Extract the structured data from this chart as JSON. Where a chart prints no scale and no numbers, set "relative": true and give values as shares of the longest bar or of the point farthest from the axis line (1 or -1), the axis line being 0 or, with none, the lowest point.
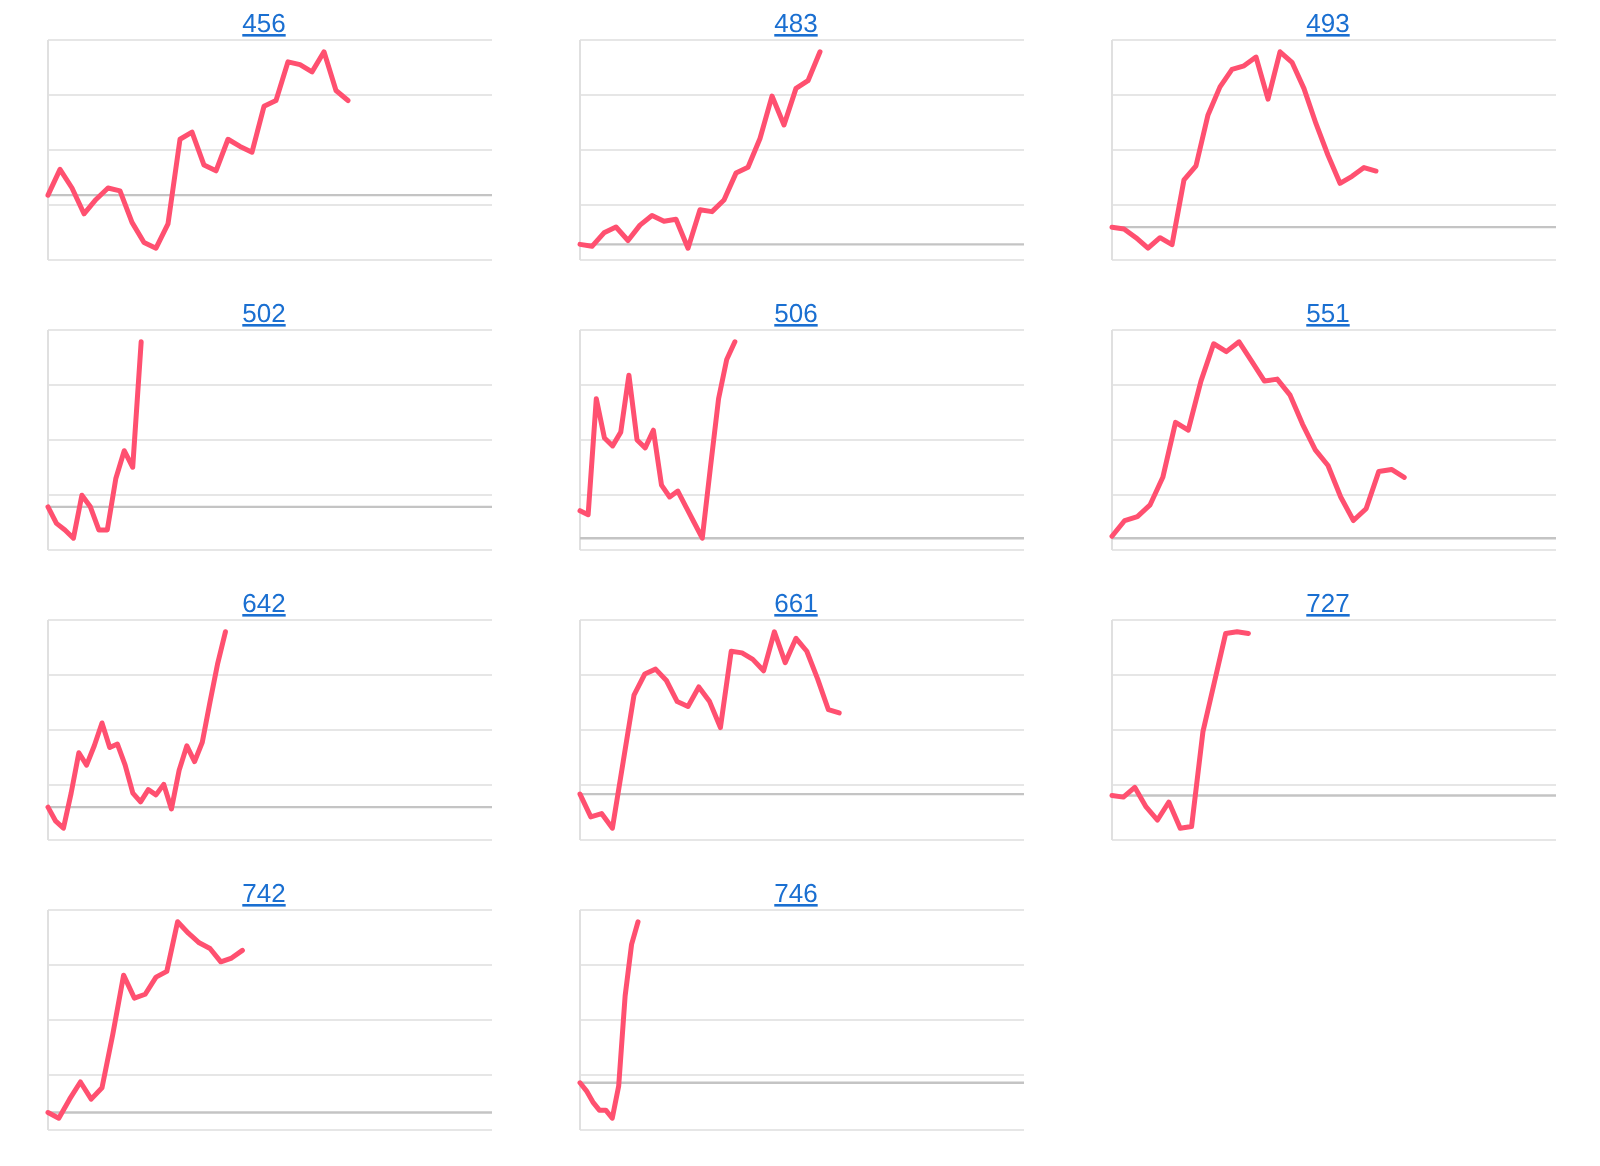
{
  "chart_data": [
    {
      "type": "line",
      "title": "456",
      "relative": true,
      "grid": true,
      "color": "#ff5070",
      "categories": [
        null,
        null,
        null,
        null,
        null,
        null,
        null,
        null,
        null,
        null,
        null,
        null,
        null,
        null,
        null,
        null,
        null,
        null,
        null,
        null,
        null,
        null,
        null,
        null,
        null,
        null,
        null,
        null,
        null,
        null,
        null,
        null,
        null,
        null,
        null,
        null,
        null
      ],
      "values": [
        0,
        0.18,
        0.05,
        -0.13,
        -0.03,
        0.05,
        0.03,
        -0.19,
        -0.33,
        -0.37,
        -0.2,
        0.39,
        0.44,
        0.21,
        0.17,
        0.39,
        0.34,
        0.3,
        0.62,
        0.66,
        0.93,
        0.91,
        0.86,
        1,
        0.73,
        0.66,
        null,
        null,
        null,
        null,
        null,
        null,
        null,
        null,
        null,
        null,
        null
      ]
    },
    {
      "type": "line",
      "title": "483",
      "relative": true,
      "grid": true,
      "color": "#ff5070",
      "categories": [
        null,
        null,
        null,
        null,
        null,
        null,
        null,
        null,
        null,
        null,
        null,
        null,
        null,
        null,
        null,
        null,
        null,
        null,
        null,
        null,
        null,
        null,
        null,
        null,
        null,
        null,
        null,
        null,
        null,
        null,
        null,
        null,
        null,
        null,
        null,
        null,
        null
      ],
      "values": [
        0,
        -0.01,
        0.06,
        0.09,
        0.02,
        0.1,
        0.15,
        0.12,
        0.13,
        -0.02,
        0.18,
        0.17,
        0.23,
        0.37,
        0.4,
        0.55,
        0.77,
        0.62,
        0.81,
        0.85,
        1,
        null,
        null,
        null,
        null,
        null,
        null,
        null,
        null,
        null,
        null,
        null,
        null,
        null,
        null,
        null,
        null
      ]
    },
    {
      "type": "line",
      "title": "493",
      "relative": true,
      "grid": true,
      "color": "#ff5070",
      "categories": [
        null,
        null,
        null,
        null,
        null,
        null,
        null,
        null,
        null,
        null,
        null,
        null,
        null,
        null,
        null,
        null,
        null,
        null,
        null,
        null,
        null,
        null,
        null,
        null,
        null,
        null,
        null,
        null,
        null,
        null,
        null,
        null,
        null,
        null,
        null,
        null,
        null
      ],
      "values": [
        0,
        -0.01,
        -0.06,
        -0.12,
        -0.06,
        -0.1,
        0.27,
        0.35,
        0.64,
        0.8,
        0.9,
        0.92,
        0.97,
        0.73,
        1,
        0.94,
        0.79,
        0.59,
        0.41,
        0.25,
        0.29,
        0.34,
        0.32,
        null,
        null,
        null,
        null,
        null,
        null,
        null,
        null,
        null,
        null,
        null,
        null,
        null,
        null
      ]
    },
    {
      "type": "line",
      "title": "502",
      "relative": true,
      "grid": true,
      "color": "#ff5070",
      "categories": [
        null,
        null,
        null,
        null,
        null,
        null,
        null,
        null,
        null,
        null,
        null,
        null,
        null,
        null,
        null,
        null,
        null,
        null,
        null,
        null,
        null,
        null,
        null,
        null,
        null,
        null,
        null,
        null,
        null,
        null,
        null,
        null,
        null,
        null,
        null,
        null,
        null,
        null,
        null,
        null,
        null,
        null,
        null,
        null,
        null,
        null,
        null,
        null,
        null,
        null,
        null,
        null
      ],
      "values": [
        0,
        -0.1,
        -0.14,
        -0.19,
        0.07,
        0,
        -0.14,
        -0.14,
        0.17,
        0.34,
        0.24,
        1,
        null,
        null,
        null,
        null,
        null,
        null,
        null,
        null,
        null,
        null,
        null,
        null,
        null,
        null,
        null,
        null,
        null,
        null,
        null,
        null,
        null,
        null,
        null,
        null,
        null,
        null,
        null,
        null,
        null,
        null,
        null,
        null,
        null,
        null,
        null,
        null,
        null,
        null,
        null,
        null
      ]
    },
    {
      "type": "line",
      "title": "506",
      "relative": true,
      "grid": true,
      "color": "#ff5070",
      "categories": [
        null,
        null,
        null,
        null,
        null,
        null,
        null,
        null,
        null,
        null,
        null,
        null,
        null,
        null,
        null,
        null,
        null,
        null,
        null,
        null,
        null,
        null,
        null,
        null,
        null,
        null,
        null,
        null,
        null,
        null,
        null,
        null,
        null,
        null,
        null,
        null,
        null,
        null,
        null,
        null,
        null,
        null,
        null,
        null,
        null,
        null,
        null,
        null,
        null,
        null,
        null,
        null,
        null,
        null
      ],
      "values": [
        0.14,
        0.12,
        0.71,
        0.51,
        0.47,
        0.54,
        0.83,
        0.5,
        0.46,
        0.55,
        0.27,
        0.21,
        0.24,
        0.16,
        0.08,
        0,
        0.36,
        0.71,
        0.91,
        1,
        null,
        null,
        null,
        null,
        null,
        null,
        null,
        null,
        null,
        null,
        null,
        null,
        null,
        null,
        null,
        null,
        null,
        null,
        null,
        null,
        null,
        null,
        null,
        null,
        null,
        null,
        null,
        null,
        null,
        null,
        null,
        null,
        null,
        null
      ]
    },
    {
      "type": "line",
      "title": "551",
      "relative": true,
      "grid": true,
      "color": "#ff5070",
      "categories": [
        null,
        null,
        null,
        null,
        null,
        null,
        null,
        null,
        null,
        null,
        null,
        null,
        null,
        null,
        null,
        null,
        null,
        null,
        null,
        null,
        null,
        null,
        null,
        null,
        null,
        null,
        null,
        null,
        null,
        null,
        null,
        null,
        null,
        null,
        null
      ],
      "values": [
        0.01,
        0.09,
        0.11,
        0.17,
        0.31,
        0.59,
        0.55,
        0.8,
        0.99,
        0.95,
        1,
        0.9,
        0.8,
        0.81,
        0.73,
        0.58,
        0.45,
        0.37,
        0.21,
        0.09,
        0.15,
        0.34,
        0.35,
        0.31,
        null,
        null,
        null,
        null,
        null,
        null,
        null,
        null,
        null,
        null,
        null
      ]
    },
    {
      "type": "line",
      "title": "642",
      "relative": true,
      "grid": true,
      "color": "#ff5070",
      "categories": [
        null,
        null,
        null,
        null,
        null,
        null,
        null,
        null,
        null,
        null,
        null,
        null,
        null,
        null,
        null,
        null,
        null,
        null,
        null,
        null,
        null,
        null,
        null,
        null,
        null,
        null,
        null,
        null,
        null,
        null,
        null,
        null,
        null,
        null,
        null,
        null,
        null,
        null,
        null,
        null,
        null,
        null,
        null,
        null,
        null,
        null,
        null,
        null,
        null,
        null,
        null,
        null,
        null,
        null,
        null,
        null,
        null
      ],
      "values": [
        0,
        -0.08,
        -0.12,
        0.08,
        0.31,
        0.24,
        0.35,
        0.48,
        0.34,
        0.36,
        0.24,
        0.08,
        0.03,
        0.1,
        0.07,
        0.13,
        -0.01,
        0.21,
        0.35,
        0.26,
        0.37,
        0.6,
        0.82,
        1,
        null,
        null,
        null,
        null,
        null,
        null,
        null,
        null,
        null,
        null,
        null,
        null,
        null,
        null,
        null,
        null,
        null,
        null,
        null,
        null,
        null,
        null,
        null,
        null,
        null,
        null,
        null,
        null,
        null,
        null,
        null,
        null,
        null
      ]
    },
    {
      "type": "line",
      "title": "661",
      "relative": true,
      "grid": true,
      "color": "#ff5070",
      "categories": [
        null,
        null,
        null,
        null,
        null,
        null,
        null,
        null,
        null,
        null,
        null,
        null,
        null,
        null,
        null,
        null,
        null,
        null,
        null,
        null,
        null,
        null,
        null,
        null,
        null,
        null,
        null,
        null,
        null,
        null,
        null,
        null,
        null,
        null,
        null,
        null,
        null,
        null,
        null,
        null,
        null
      ],
      "values": [
        0,
        -0.14,
        -0.12,
        -0.21,
        0.2,
        0.61,
        0.74,
        0.77,
        0.7,
        0.57,
        0.54,
        0.66,
        0.57,
        0.41,
        0.88,
        0.87,
        0.83,
        0.76,
        1,
        0.81,
        0.96,
        0.88,
        0.71,
        0.52,
        0.5,
        null,
        null,
        null,
        null,
        null,
        null,
        null,
        null,
        null,
        null,
        null,
        null,
        null,
        null,
        null,
        null
      ]
    },
    {
      "type": "line",
      "title": "727",
      "relative": true,
      "grid": true,
      "color": "#ff5070",
      "categories": [
        null,
        null,
        null,
        null,
        null,
        null,
        null,
        null,
        null,
        null,
        null,
        null,
        null,
        null,
        null,
        null,
        null,
        null,
        null,
        null,
        null,
        null,
        null,
        null,
        null,
        null,
        null,
        null,
        null,
        null,
        null,
        null,
        null,
        null,
        null,
        null,
        null,
        null,
        null
      ],
      "values": [
        0,
        -0.01,
        0.05,
        -0.07,
        -0.15,
        -0.04,
        -0.2,
        -0.19,
        0.39,
        0.69,
        0.99,
        1,
        0.99,
        null,
        null,
        null,
        null,
        null,
        null,
        null,
        null,
        null,
        null,
        null,
        null,
        null,
        null,
        null,
        null,
        null,
        null,
        null,
        null,
        null,
        null,
        null,
        null,
        null,
        null
      ]
    },
    {
      "type": "line",
      "title": "742",
      "relative": true,
      "grid": true,
      "color": "#ff5070",
      "categories": [
        null,
        null,
        null,
        null,
        null,
        null,
        null,
        null,
        null,
        null,
        null,
        null,
        null,
        null,
        null,
        null,
        null,
        null,
        null,
        null,
        null,
        null,
        null,
        null,
        null,
        null,
        null,
        null,
        null,
        null,
        null,
        null,
        null,
        null,
        null,
        null,
        null,
        null,
        null,
        null,
        null
      ],
      "values": [
        0,
        -0.03,
        0.07,
        0.16,
        0.07,
        0.13,
        0.41,
        0.72,
        0.6,
        0.62,
        0.71,
        0.74,
        1,
        0.94,
        0.89,
        0.86,
        0.79,
        0.81,
        0.85,
        null,
        null,
        null,
        null,
        null,
        null,
        null,
        null,
        null,
        null,
        null,
        null,
        null,
        null,
        null,
        null,
        null,
        null,
        null,
        null,
        null,
        null
      ]
    },
    {
      "type": "line",
      "title": "746",
      "relative": true,
      "grid": true,
      "color": "#ff5070",
      "categories": [
        null,
        null,
        null,
        null,
        null,
        null,
        null,
        null,
        null,
        null,
        null,
        null,
        null,
        null,
        null,
        null,
        null,
        null,
        null,
        null,
        null,
        null,
        null,
        null,
        null,
        null,
        null,
        null,
        null,
        null,
        null,
        null,
        null,
        null,
        null,
        null,
        null,
        null,
        null,
        null,
        null,
        null,
        null,
        null,
        null,
        null,
        null,
        null,
        null,
        null,
        null,
        null,
        null,
        null,
        null,
        null,
        null,
        null,
        null,
        null,
        null,
        null,
        null,
        null,
        null,
        null,
        null,
        null
      ],
      "values": [
        0,
        -0.05,
        -0.12,
        -0.17,
        -0.17,
        -0.22,
        -0.02,
        0.54,
        0.86,
        1,
        null,
        null,
        null,
        null,
        null,
        null,
        null,
        null,
        null,
        null,
        null,
        null,
        null,
        null,
        null,
        null,
        null,
        null,
        null,
        null,
        null,
        null,
        null,
        null,
        null,
        null,
        null,
        null,
        null,
        null,
        null,
        null,
        null,
        null,
        null,
        null,
        null,
        null,
        null,
        null,
        null,
        null,
        null,
        null,
        null,
        null,
        null,
        null,
        null,
        null,
        null,
        null,
        null,
        null,
        null,
        null,
        null,
        null
      ]
    }
  ]
}
